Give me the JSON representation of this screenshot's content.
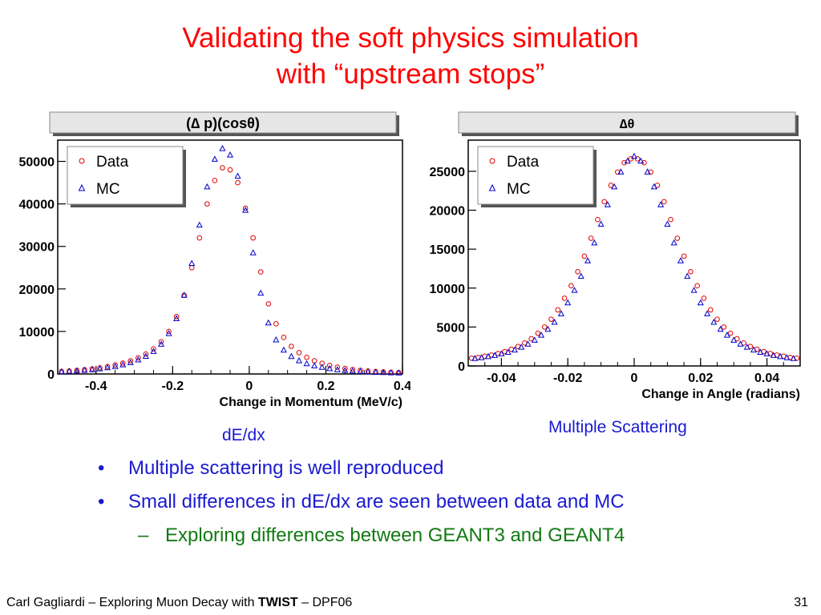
{
  "slide": {
    "title_line1": "Validating the soft physics simulation",
    "title_line2": "with “upstream stops”",
    "caption_left": "dE/dx",
    "caption_right": "Multiple Scattering",
    "bullets": [
      "Multiple scattering is well reproduced",
      "Small differences in dE/dx are seen between data and MC"
    ],
    "sub_bullets": [
      "Exploring differences between GEANT3 and GEANT4"
    ],
    "bullet_symbol": "•",
    "sub_bullet_symbol": "–",
    "footer": {
      "prefix": "Carl Gagliardi – Exploring Muon Decay with ",
      "bold": "TWIST",
      "suffix": " – DPF06"
    },
    "page_number": "31"
  },
  "chart_data": [
    {
      "type": "scatter",
      "title": "(∆ p)(cosθ)",
      "xlabel": "Change in Momentum (MeV/c)",
      "ylabel": "",
      "xlim": [
        -0.5,
        0.4
      ],
      "ylim": [
        0,
        55000
      ],
      "xticks": [
        -0.4,
        -0.2,
        0,
        0.2,
        0.4
      ],
      "xtick_labels": [
        "-0.4",
        "-0.2",
        "0",
        "0.2",
        "0.4"
      ],
      "yticks": [
        0,
        10000,
        20000,
        30000,
        40000,
        50000
      ],
      "ytick_labels": [
        "0",
        "10000",
        "20000",
        "30000",
        "40000",
        "50000"
      ],
      "legend": {
        "placement": "top-left",
        "entries": [
          "Data",
          "MC"
        ]
      },
      "series": [
        {
          "name": "Data",
          "marker": "circle",
          "color": "#e00000",
          "x": [
            -0.49,
            -0.47,
            -0.45,
            -0.43,
            -0.41,
            -0.39,
            -0.37,
            -0.35,
            -0.33,
            -0.31,
            -0.29,
            -0.27,
            -0.25,
            -0.23,
            -0.21,
            -0.19,
            -0.17,
            -0.15,
            -0.13,
            -0.11,
            -0.09,
            -0.07,
            -0.05,
            -0.03,
            -0.01,
            0.01,
            0.03,
            0.05,
            0.07,
            0.09,
            0.11,
            0.13,
            0.15,
            0.17,
            0.19,
            0.21,
            0.23,
            0.25,
            0.27,
            0.29,
            0.31,
            0.33,
            0.35,
            0.37,
            0.39
          ],
          "y": [
            600,
            700,
            850,
            1000,
            1200,
            1450,
            1750,
            2100,
            2550,
            3100,
            3800,
            4700,
            5900,
            7600,
            10000,
            13500,
            18500,
            25000,
            32000,
            40000,
            45500,
            48500,
            48000,
            45000,
            39000,
            32000,
            24000,
            16500,
            11800,
            8600,
            6500,
            5000,
            3900,
            3100,
            2500,
            2000,
            1600,
            1300,
            1050,
            850,
            700,
            580,
            480,
            400,
            340
          ]
        },
        {
          "name": "MC",
          "marker": "triangle",
          "color": "#0000cc",
          "x": [
            -0.49,
            -0.47,
            -0.45,
            -0.43,
            -0.41,
            -0.39,
            -0.37,
            -0.35,
            -0.33,
            -0.31,
            -0.29,
            -0.27,
            -0.25,
            -0.23,
            -0.21,
            -0.19,
            -0.17,
            -0.15,
            -0.13,
            -0.11,
            -0.09,
            -0.07,
            -0.05,
            -0.03,
            -0.01,
            0.01,
            0.03,
            0.05,
            0.07,
            0.09,
            0.11,
            0.13,
            0.15,
            0.17,
            0.19,
            0.21,
            0.23,
            0.25,
            0.27,
            0.29,
            0.31,
            0.33,
            0.35,
            0.37,
            0.39
          ],
          "y": [
            500,
            600,
            700,
            850,
            1000,
            1200,
            1450,
            1750,
            2150,
            2650,
            3300,
            4150,
            5300,
            7000,
            9500,
            13000,
            18500,
            26000,
            35000,
            44000,
            50500,
            53000,
            51500,
            46500,
            38500,
            28500,
            19000,
            12000,
            8000,
            5600,
            4100,
            3100,
            2400,
            1900,
            1550,
            1250,
            1000,
            820,
            680,
            560,
            460,
            380,
            320,
            270,
            230
          ]
        }
      ]
    },
    {
      "type": "scatter",
      "title": "∆θ",
      "xlabel": "Change in Angle (radians)",
      "ylabel": "",
      "xlim": [
        -0.05,
        0.05
      ],
      "ylim": [
        0,
        29000
      ],
      "xticks": [
        -0.04,
        -0.02,
        0,
        0.02,
        0.04
      ],
      "xtick_labels": [
        "-0.04",
        "-0.02",
        "0",
        "0.02",
        "0.04"
      ],
      "yticks": [
        0,
        5000,
        10000,
        15000,
        20000,
        25000
      ],
      "ytick_labels": [
        "0",
        "5000",
        "10000",
        "15000",
        "20000",
        "25000"
      ],
      "legend": {
        "placement": "top-left",
        "entries": [
          "Data",
          "MC"
        ]
      },
      "series": [
        {
          "name": "Data",
          "marker": "circle",
          "color": "#e00000",
          "x": [
            -0.049,
            -0.047,
            -0.045,
            -0.043,
            -0.041,
            -0.039,
            -0.037,
            -0.035,
            -0.033,
            -0.031,
            -0.029,
            -0.027,
            -0.025,
            -0.023,
            -0.021,
            -0.019,
            -0.017,
            -0.015,
            -0.013,
            -0.011,
            -0.009,
            -0.007,
            -0.005,
            -0.003,
            -0.001,
            0.001,
            0.003,
            0.005,
            0.007,
            0.009,
            0.011,
            0.013,
            0.015,
            0.017,
            0.019,
            0.021,
            0.023,
            0.025,
            0.027,
            0.029,
            0.031,
            0.033,
            0.035,
            0.037,
            0.039,
            0.041,
            0.043,
            0.045,
            0.047,
            0.049
          ],
          "y": [
            1000,
            1100,
            1250,
            1400,
            1600,
            1850,
            2150,
            2500,
            2950,
            3500,
            4200,
            5000,
            6000,
            7200,
            8700,
            10300,
            12100,
            14100,
            16400,
            18800,
            21100,
            23200,
            24900,
            26100,
            26600,
            26600,
            26100,
            24900,
            23200,
            21100,
            18800,
            16400,
            14100,
            12100,
            10300,
            8700,
            7200,
            6000,
            5000,
            4200,
            3500,
            2950,
            2500,
            2150,
            1850,
            1600,
            1400,
            1250,
            1100,
            1000
          ]
        },
        {
          "name": "MC",
          "marker": "triangle",
          "color": "#0000cc",
          "x": [
            -0.048,
            -0.046,
            -0.044,
            -0.042,
            -0.04,
            -0.038,
            -0.036,
            -0.034,
            -0.032,
            -0.03,
            -0.028,
            -0.026,
            -0.024,
            -0.022,
            -0.02,
            -0.018,
            -0.016,
            -0.014,
            -0.012,
            -0.01,
            -0.008,
            -0.006,
            -0.004,
            -0.002,
            0.0,
            0.002,
            0.004,
            0.006,
            0.008,
            0.01,
            0.012,
            0.014,
            0.016,
            0.018,
            0.02,
            0.022,
            0.024,
            0.026,
            0.028,
            0.03,
            0.032,
            0.034,
            0.036,
            0.038,
            0.04,
            0.042,
            0.044,
            0.046,
            0.048
          ],
          "y": [
            950,
            1050,
            1200,
            1350,
            1550,
            1750,
            2050,
            2400,
            2800,
            3300,
            3950,
            4700,
            5600,
            6700,
            8100,
            9700,
            11500,
            13500,
            15800,
            18200,
            20700,
            23000,
            24900,
            26300,
            26900,
            26300,
            24900,
            23000,
            20700,
            18200,
            15800,
            13500,
            11500,
            9700,
            8100,
            6700,
            5600,
            4700,
            3950,
            3300,
            2800,
            2400,
            2050,
            1750,
            1550,
            1350,
            1200,
            1050,
            950
          ]
        }
      ]
    }
  ]
}
